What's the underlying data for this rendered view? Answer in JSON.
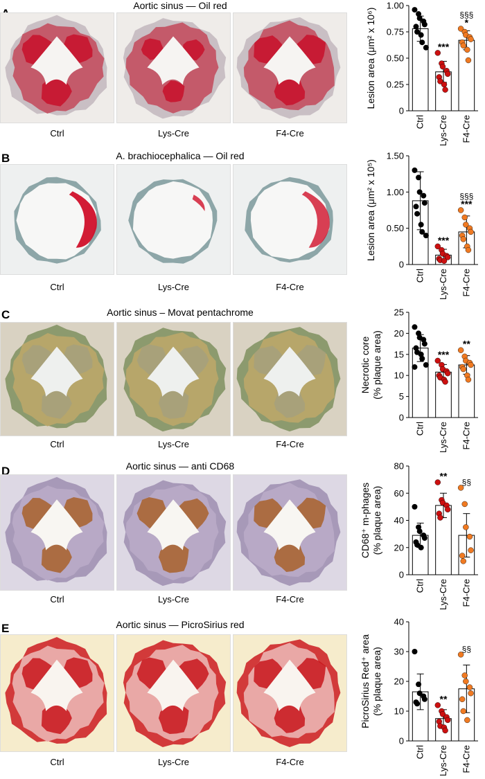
{
  "panels": [
    {
      "letter": "A",
      "title": "Aortic sinus — Oil red",
      "groups": [
        "Ctrl",
        "Lys-Cre",
        "F4-Cre"
      ],
      "stain": "oilred_sinus"
    },
    {
      "letter": "B",
      "title": "A. brachiocephalica — Oil red",
      "groups": [
        "Ctrl",
        "Lys-Cre",
        "F4-Cre"
      ],
      "stain": "oilred_brachio"
    },
    {
      "letter": "C",
      "title": "Aortic sinus – Movat pentachrome",
      "groups": [
        "Ctrl",
        "Lys-Cre",
        "F4-Cre"
      ],
      "stain": "movat"
    },
    {
      "letter": "D",
      "title": "Aortic sinus — anti CD68",
      "groups": [
        "Ctrl",
        "Lys-Cre",
        "F4-Cre"
      ],
      "stain": "cd68"
    },
    {
      "letter": "E",
      "title": "Aortic sinus — PicroSirius red",
      "groups": [
        "Ctrl",
        "Lys-Cre",
        "F4-Cre"
      ],
      "stain": "sirius"
    }
  ],
  "colors": {
    "ctrl": "#000000",
    "lys": "#cc1010",
    "f4": "#f07a22"
  },
  "chart_data": [
    {
      "type": "bar",
      "panel": "A",
      "categories": [
        "Ctrl",
        "Lys-Cre",
        "F4-Cre"
      ],
      "ylabel": "Lesion area (μm² x 10⁶)",
      "ylim": [
        0,
        1.0
      ],
      "yticks": [
        "0",
        "0.25",
        "0.50",
        "0.75",
        "1.00"
      ],
      "ytick_values": [
        0,
        0.25,
        0.5,
        0.75,
        1.0
      ],
      "means": [
        0.78,
        0.37,
        0.67
      ],
      "sd": [
        0.12,
        0.1,
        0.09
      ],
      "points": [
        [
          0.96,
          0.92,
          0.88,
          0.85,
          0.82,
          0.8,
          0.75,
          0.72,
          0.65,
          0.6
        ],
        [
          0.55,
          0.45,
          0.42,
          0.38,
          0.35,
          0.32,
          0.28,
          0.25,
          0.2
        ],
        [
          0.78,
          0.75,
          0.72,
          0.7,
          0.68,
          0.65,
          0.62,
          0.58,
          0.48
        ]
      ],
      "annotations": [
        "",
        "***",
        "*"
      ],
      "annotations2": [
        "",
        "",
        "§§§"
      ]
    },
    {
      "type": "bar",
      "panel": "B",
      "categories": [
        "Ctrl",
        "Lys-Cre",
        "F4-Cre"
      ],
      "ylabel": "Lesion area (μm² x 10⁵)",
      "ylim": [
        0,
        1.5
      ],
      "yticks": [
        "0",
        "0.50",
        "1.00",
        "1.50"
      ],
      "ytick_values": [
        0,
        0.5,
        1.0,
        1.5
      ],
      "means": [
        0.88,
        0.13,
        0.45
      ],
      "sd": [
        0.4,
        0.08,
        0.22
      ],
      "points": [
        [
          1.3,
          1.2,
          1.0,
          0.95,
          0.85,
          0.8,
          0.7,
          0.55,
          0.45,
          0.4
        ],
        [
          0.25,
          0.2,
          0.15,
          0.12,
          0.1,
          0.08,
          0.06,
          0.05
        ],
        [
          0.75,
          0.65,
          0.55,
          0.5,
          0.45,
          0.4,
          0.35,
          0.25,
          0.2
        ]
      ],
      "annotations": [
        "",
        "***",
        "***"
      ],
      "annotations2": [
        "",
        "",
        "§§§"
      ]
    },
    {
      "type": "bar",
      "panel": "C",
      "categories": [
        "Ctrl",
        "Lys-Cre",
        "F4-Cre"
      ],
      "ylabel": "Necrotic core (% plaque area)",
      "ylabel_lines": [
        "Necrotic core",
        "(% plaque area)"
      ],
      "ylim": [
        0,
        25
      ],
      "yticks": [
        "0",
        "5",
        "10",
        "15",
        "20",
        "25"
      ],
      "ytick_values": [
        0,
        5,
        10,
        15,
        20,
        25
      ],
      "means": [
        16.5,
        10.8,
        12.5
      ],
      "sd": [
        3.2,
        1.8,
        2.2
      ],
      "points": [
        [
          21.5,
          20,
          19,
          18.5,
          17.5,
          16.5,
          15.5,
          15,
          14,
          12.5,
          12
        ],
        [
          13.5,
          12.5,
          11.5,
          11,
          10.5,
          10,
          9.5,
          9,
          8.5
        ],
        [
          16,
          14.5,
          13.5,
          13,
          12.5,
          12,
          11.5,
          10,
          9
        ]
      ],
      "annotations": [
        "",
        "***",
        "**"
      ],
      "annotations2": [
        "",
        "",
        ""
      ]
    },
    {
      "type": "bar",
      "panel": "D",
      "categories": [
        "Ctrl",
        "Lys-Cre",
        "F4-Cre"
      ],
      "ylabel": "CD68⁺ m-phages (% plaque area)",
      "ylabel_lines": [
        "CD68⁺ m-phages",
        "(% plaque area)"
      ],
      "ylim": [
        0,
        80
      ],
      "yticks": [
        "0",
        "20",
        "40",
        "60",
        "80"
      ],
      "ytick_values": [
        0,
        20,
        40,
        60,
        80
      ],
      "means": [
        29,
        51,
        29
      ],
      "sd": [
        9,
        9,
        16
      ],
      "points": [
        [
          50,
          35,
          32,
          29,
          27,
          24,
          22,
          20
        ],
        [
          68,
          55,
          53,
          51,
          48,
          45,
          42
        ],
        [
          64,
          52,
          35,
          28,
          18,
          14,
          10
        ]
      ],
      "annotations": [
        "",
        "**",
        ""
      ],
      "annotations2": [
        "",
        "",
        "§§"
      ]
    },
    {
      "type": "bar",
      "panel": "E",
      "categories": [
        "Ctrl",
        "Lys-Cre",
        "F4-Cre"
      ],
      "ylabel": "PicroSirius Red⁺ area (% plaque area)",
      "ylabel_lines": [
        "PicroSirius Red⁺ area",
        "(% plaque area)"
      ],
      "ylim": [
        0,
        40
      ],
      "yticks": [
        "0",
        "10",
        "20",
        "30",
        "40"
      ],
      "ytick_values": [
        0,
        10,
        20,
        30,
        40
      ],
      "means": [
        16.5,
        7.5,
        17.5
      ],
      "sd": [
        6,
        3,
        8
      ],
      "points": [
        [
          30,
          19,
          16,
          15,
          14,
          13,
          12.5
        ],
        [
          12,
          10,
          9,
          8,
          7,
          6.5,
          5,
          4.5,
          3.5
        ],
        [
          29,
          22,
          20,
          18,
          16,
          14,
          10,
          7
        ]
      ],
      "annotations": [
        "",
        "**",
        ""
      ],
      "annotations2": [
        "",
        "",
        "§§"
      ]
    }
  ]
}
